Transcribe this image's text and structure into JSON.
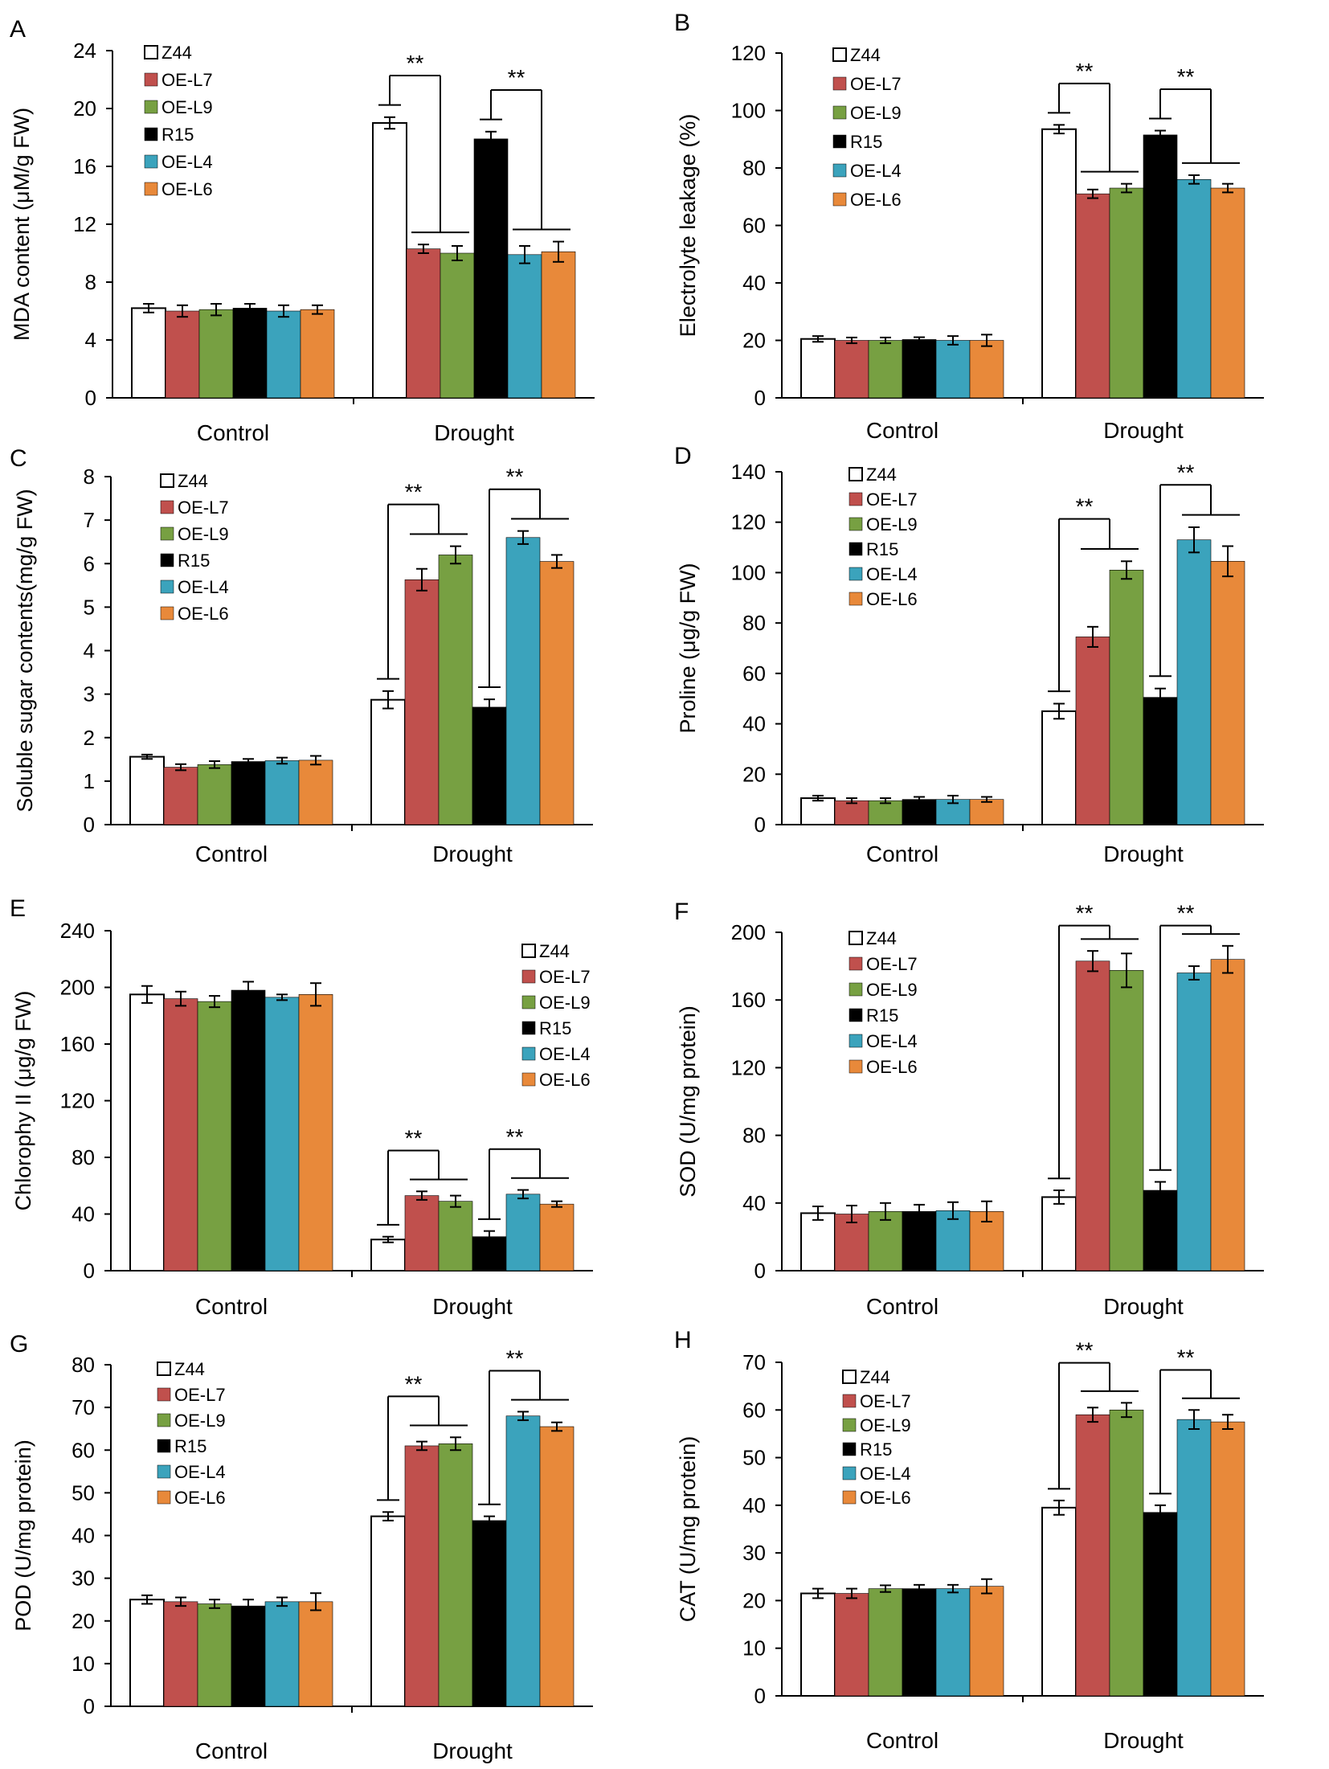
{
  "figure": {
    "colors": {
      "Z44": "#ffffff",
      "OE-L7": "#c0504d",
      "OE-L9": "#77a042",
      "R15": "#000000",
      "OE-L4": "#3ba3bc",
      "OE-L6": "#e8893a",
      "axis": "#000000"
    }
  },
  "chart_data": [
    {
      "panel": "A",
      "type": "bar",
      "ylabel": "MDA content (μM/g FW)",
      "categories": [
        "Control",
        "Drought"
      ],
      "ylim": [
        0,
        24
      ],
      "yticks": [
        0,
        4,
        8,
        12,
        16,
        20,
        24
      ],
      "legend": [
        "Z44",
        "OE-L7",
        "OE-L9",
        "R15",
        "OE-L4",
        "OE-L6"
      ],
      "legend_position": "top-left",
      "series": [
        {
          "name": "Z44",
          "values": [
            6.2,
            19.0
          ],
          "errors": [
            0.3,
            0.4
          ]
        },
        {
          "name": "OE-L7",
          "values": [
            6.0,
            10.3
          ],
          "errors": [
            0.4,
            0.3
          ]
        },
        {
          "name": "OE-L9",
          "values": [
            6.1,
            10.0
          ],
          "errors": [
            0.4,
            0.5
          ]
        },
        {
          "name": "R15",
          "values": [
            6.2,
            17.9
          ],
          "errors": [
            0.3,
            0.5
          ]
        },
        {
          "name": "OE-L4",
          "values": [
            6.0,
            9.9
          ],
          "errors": [
            0.4,
            0.6
          ]
        },
        {
          "name": "OE-L6",
          "values": [
            6.1,
            10.1
          ],
          "errors": [
            0.3,
            0.7
          ]
        }
      ],
      "annotations": [
        {
          "text": "**"
        },
        {
          "text": "**"
        }
      ]
    },
    {
      "panel": "B",
      "type": "bar",
      "ylabel": "Electrolyte leakage (%)",
      "categories": [
        "Control",
        "Drought"
      ],
      "ylim": [
        0,
        120
      ],
      "yticks": [
        0,
        20,
        40,
        60,
        80,
        100,
        120
      ],
      "legend": [
        "Z44",
        "OE-L7",
        "OE-L9",
        "R15",
        "OE-L4",
        "OE-L6"
      ],
      "legend_position": "top-left",
      "series": [
        {
          "name": "Z44",
          "values": [
            20.5,
            93.5
          ],
          "errors": [
            1.0,
            1.5
          ]
        },
        {
          "name": "OE-L7",
          "values": [
            20.0,
            71.0
          ],
          "errors": [
            1.0,
            1.5
          ]
        },
        {
          "name": "OE-L9",
          "values": [
            20.0,
            73.0
          ],
          "errors": [
            1.0,
            1.5
          ]
        },
        {
          "name": "R15",
          "values": [
            20.3,
            91.5
          ],
          "errors": [
            0.8,
            1.5
          ]
        },
        {
          "name": "OE-L4",
          "values": [
            20.0,
            76.0
          ],
          "errors": [
            1.5,
            1.5
          ]
        },
        {
          "name": "OE-L6",
          "values": [
            20.0,
            73.0
          ],
          "errors": [
            2.0,
            1.5
          ]
        }
      ],
      "annotations": [
        {
          "text": "**"
        },
        {
          "text": "**"
        }
      ]
    },
    {
      "panel": "C",
      "type": "bar",
      "ylabel": "Soluble sugar contents(mg/g FW)",
      "categories": [
        "Control",
        "Drought"
      ],
      "ylim": [
        0,
        8
      ],
      "yticks": [
        0,
        1,
        2,
        3,
        4,
        5,
        6,
        7,
        8
      ],
      "legend": [
        "Z44",
        "OE-L7",
        "OE-L9",
        "R15",
        "OE-L4",
        "OE-L6"
      ],
      "legend_position": "top-left",
      "series": [
        {
          "name": "Z44",
          "values": [
            1.56,
            2.87
          ],
          "errors": [
            0.05,
            0.2
          ]
        },
        {
          "name": "OE-L7",
          "values": [
            1.32,
            5.63
          ],
          "errors": [
            0.07,
            0.25
          ]
        },
        {
          "name": "OE-L9",
          "values": [
            1.38,
            6.2
          ],
          "errors": [
            0.08,
            0.2
          ]
        },
        {
          "name": "R15",
          "values": [
            1.45,
            2.7
          ],
          "errors": [
            0.06,
            0.18
          ]
        },
        {
          "name": "OE-L4",
          "values": [
            1.47,
            6.6
          ],
          "errors": [
            0.07,
            0.15
          ]
        },
        {
          "name": "OE-L6",
          "values": [
            1.48,
            6.05
          ],
          "errors": [
            0.1,
            0.15
          ]
        }
      ],
      "annotations": [
        {
          "text": "**"
        },
        {
          "text": "**"
        }
      ]
    },
    {
      "panel": "D",
      "type": "bar",
      "ylabel": "Proline (μg/g FW)",
      "categories": [
        "Control",
        "Drought"
      ],
      "ylim": [
        0,
        140
      ],
      "yticks": [
        0,
        20,
        40,
        60,
        80,
        100,
        120,
        140
      ],
      "legend": [
        "Z44",
        "OE-L7",
        "OE-L9",
        "R15",
        "OE-L4",
        "OE-L6"
      ],
      "legend_position": "top-left",
      "series": [
        {
          "name": "Z44",
          "values": [
            10.5,
            45.0
          ],
          "errors": [
            1.0,
            3.0
          ]
        },
        {
          "name": "OE-L7",
          "values": [
            9.5,
            74.5
          ],
          "errors": [
            1.0,
            4.0
          ]
        },
        {
          "name": "OE-L9",
          "values": [
            9.5,
            101.0
          ],
          "errors": [
            1.0,
            3.5
          ]
        },
        {
          "name": "R15",
          "values": [
            10.0,
            50.5
          ],
          "errors": [
            1.0,
            3.5
          ]
        },
        {
          "name": "OE-L4",
          "values": [
            10.0,
            113.0
          ],
          "errors": [
            1.5,
            5.0
          ]
        },
        {
          "name": "OE-L6",
          "values": [
            10.0,
            104.5
          ],
          "errors": [
            1.0,
            6.0
          ]
        }
      ],
      "annotations": [
        {
          "text": "**"
        },
        {
          "text": "**"
        }
      ]
    },
    {
      "panel": "E",
      "type": "bar",
      "ylabel": "Chlorophy II (μg/g FW)",
      "categories": [
        "Control",
        "Drought"
      ],
      "ylim": [
        0,
        240
      ],
      "yticks": [
        0,
        40,
        80,
        120,
        160,
        200,
        240
      ],
      "legend": [
        "Z44",
        "OE-L7",
        "OE-L9",
        "R15",
        "OE-L4",
        "OE-L6"
      ],
      "legend_position": "top-right",
      "series": [
        {
          "name": "Z44",
          "values": [
            195.0,
            22.0
          ],
          "errors": [
            6.0,
            2.0
          ]
        },
        {
          "name": "OE-L7",
          "values": [
            192.0,
            53.0
          ],
          "errors": [
            5.0,
            3.0
          ]
        },
        {
          "name": "OE-L9",
          "values": [
            190.0,
            49.0
          ],
          "errors": [
            4.0,
            4.0
          ]
        },
        {
          "name": "R15",
          "values": [
            198.0,
            24.0
          ],
          "errors": [
            6.0,
            4.0
          ]
        },
        {
          "name": "OE-L4",
          "values": [
            193.0,
            54.0
          ],
          "errors": [
            2.0,
            3.0
          ]
        },
        {
          "name": "OE-L6",
          "values": [
            195.0,
            47.0
          ],
          "errors": [
            8.0,
            2.0
          ]
        }
      ],
      "annotations": [
        {
          "text": "**"
        },
        {
          "text": "**"
        }
      ]
    },
    {
      "panel": "F",
      "type": "bar",
      "ylabel": "SOD (U/mg protein)",
      "categories": [
        "Control",
        "Drought"
      ],
      "ylim": [
        0,
        200
      ],
      "yticks": [
        0,
        40,
        80,
        120,
        160,
        200
      ],
      "legend": [
        "Z44",
        "OE-L7",
        "OE-L9",
        "R15",
        "OE-L4",
        "OE-L6"
      ],
      "legend_position": "top-left",
      "series": [
        {
          "name": "Z44",
          "values": [
            34.0,
            43.5
          ],
          "errors": [
            4.0,
            4.0
          ]
        },
        {
          "name": "OE-L7",
          "values": [
            33.5,
            183.0
          ],
          "errors": [
            5.0,
            6.0
          ]
        },
        {
          "name": "OE-L9",
          "values": [
            35.0,
            177.5
          ],
          "errors": [
            5.0,
            10.0
          ]
        },
        {
          "name": "R15",
          "values": [
            35.0,
            47.5
          ],
          "errors": [
            4.0,
            5.0
          ]
        },
        {
          "name": "OE-L4",
          "values": [
            35.5,
            176.0
          ],
          "errors": [
            5.0,
            4.0
          ]
        },
        {
          "name": "OE-L6",
          "values": [
            35.0,
            184.0
          ],
          "errors": [
            6.0,
            8.0
          ]
        }
      ],
      "annotations": [
        {
          "text": "**"
        },
        {
          "text": "**"
        }
      ]
    },
    {
      "panel": "G",
      "type": "bar",
      "ylabel": "POD (U/mg protein)",
      "categories": [
        "Control",
        "Drought"
      ],
      "ylim": [
        0,
        80
      ],
      "yticks": [
        0,
        10,
        20,
        30,
        40,
        50,
        60,
        70,
        80
      ],
      "legend": [
        "Z44",
        "OE-L7",
        "OE-L9",
        "R15",
        "OE-L4",
        "OE-L6"
      ],
      "legend_position": "top-left",
      "series": [
        {
          "name": "Z44",
          "values": [
            25.0,
            44.5
          ],
          "errors": [
            1.0,
            1.0
          ]
        },
        {
          "name": "OE-L7",
          "values": [
            24.5,
            61.0
          ],
          "errors": [
            1.0,
            1.0
          ]
        },
        {
          "name": "OE-L9",
          "values": [
            24.0,
            61.5
          ],
          "errors": [
            1.0,
            1.5
          ]
        },
        {
          "name": "R15",
          "values": [
            23.5,
            43.5
          ],
          "errors": [
            1.5,
            1.0
          ]
        },
        {
          "name": "OE-L4",
          "values": [
            24.5,
            68.0
          ],
          "errors": [
            1.0,
            1.0
          ]
        },
        {
          "name": "OE-L6",
          "values": [
            24.5,
            65.5
          ],
          "errors": [
            2.0,
            1.0
          ]
        }
      ],
      "annotations": [
        {
          "text": "**"
        },
        {
          "text": "**"
        }
      ]
    },
    {
      "panel": "H",
      "type": "bar",
      "ylabel": "CAT (U/mg protein)",
      "categories": [
        "Control",
        "Drought"
      ],
      "ylim": [
        0,
        70
      ],
      "yticks": [
        0,
        10,
        20,
        30,
        40,
        50,
        60,
        70
      ],
      "legend": [
        "Z44",
        "OE-L7",
        "OE-L9",
        "R15",
        "OE-L4",
        "OE-L6"
      ],
      "legend_position": "top-left",
      "series": [
        {
          "name": "Z44",
          "values": [
            21.5,
            39.5
          ],
          "errors": [
            1.0,
            1.5
          ]
        },
        {
          "name": "OE-L7",
          "values": [
            21.5,
            59.0
          ],
          "errors": [
            1.0,
            1.5
          ]
        },
        {
          "name": "OE-L9",
          "values": [
            22.5,
            60.0
          ],
          "errors": [
            0.7,
            1.5
          ]
        },
        {
          "name": "R15",
          "values": [
            22.5,
            38.5
          ],
          "errors": [
            0.8,
            1.5
          ]
        },
        {
          "name": "OE-L4",
          "values": [
            22.5,
            58.0
          ],
          "errors": [
            0.8,
            2.0
          ]
        },
        {
          "name": "OE-L6",
          "values": [
            23.0,
            57.5
          ],
          "errors": [
            1.5,
            1.5
          ]
        }
      ],
      "annotations": [
        {
          "text": "**"
        },
        {
          "text": "**"
        }
      ]
    }
  ]
}
